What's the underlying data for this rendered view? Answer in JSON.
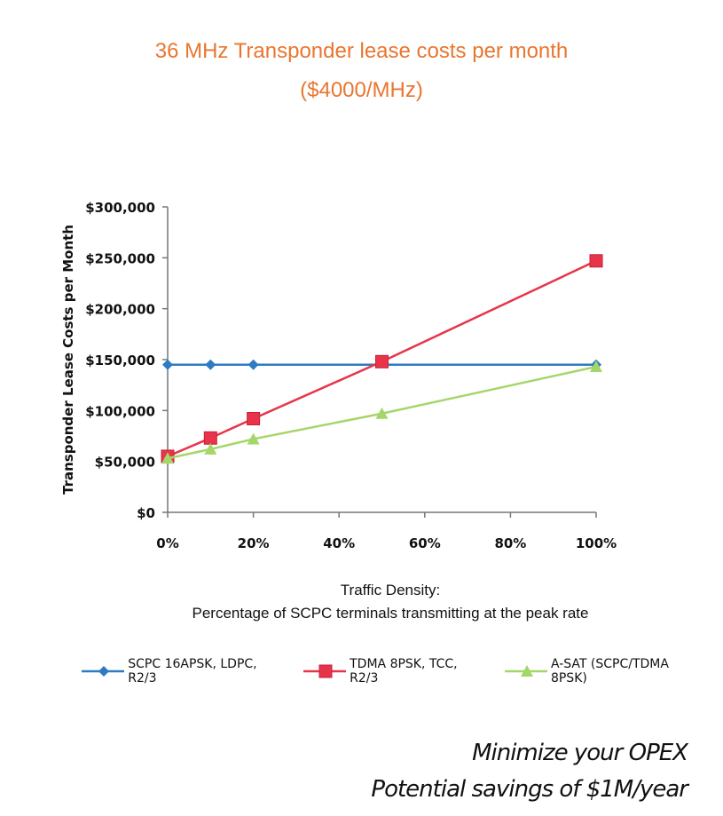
{
  "title_line1": "36 MHz Transponder lease costs per month",
  "title_line2": "($4000/MHz)",
  "tagline1": "Minimize your OPEX",
  "tagline2": "Potential savings of $1M/year",
  "chart_data": {
    "type": "line",
    "ylabel": "Transponder Lease Costs per Month",
    "xlabel_line1": "Traffic Density:",
    "xlabel_line2": "Percentage of SCPC terminals transmitting at the peak rate",
    "xlim": [
      0,
      100
    ],
    "ylim": [
      0,
      300000
    ],
    "x_ticks": [
      "0%",
      "20%",
      "40%",
      "60%",
      "80%",
      "100%"
    ],
    "y_ticks": [
      "$0",
      "$50,000",
      "$100,000",
      "$150,000",
      "$200,000",
      "$250,000",
      "$300,000"
    ],
    "grid": false,
    "legend_position": "bottom",
    "series": [
      {
        "name": "SCPC 16APSK, LDPC, R2/3",
        "color": "#2e7bc4",
        "marker": "diamond",
        "x": [
          0,
          10,
          20,
          100
        ],
        "y": [
          145000,
          145000,
          145000,
          145000
        ]
      },
      {
        "name": "TDMA 8PSK, TCC, R2/3",
        "color": "#e8344a",
        "marker": "square",
        "x": [
          0,
          10,
          20,
          50,
          100
        ],
        "y": [
          55000,
          73000,
          92000,
          148000,
          247000
        ]
      },
      {
        "name": "A-SAT (SCPC/TDMA 8PSK)",
        "color": "#a5d66a",
        "marker": "triangle",
        "x": [
          0,
          10,
          20,
          50,
          100
        ],
        "y": [
          53000,
          62000,
          72000,
          97000,
          143000
        ]
      }
    ]
  }
}
